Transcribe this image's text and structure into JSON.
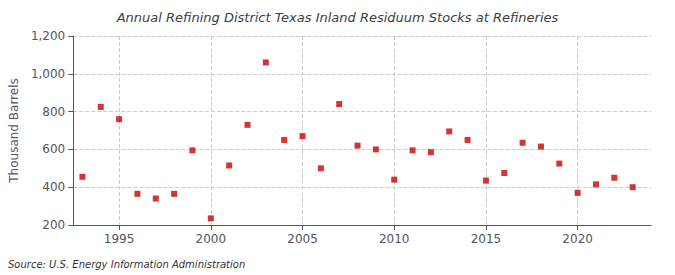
{
  "chart_data": {
    "type": "scatter",
    "title": "Annual Refining District Texas Inland Residuum Stocks at Refineries",
    "ylabel": "Thousand Barrels",
    "source": "Source: U.S. Energy Information Administration",
    "x": [
      1993,
      1994,
      1995,
      1996,
      1997,
      1998,
      1999,
      2000,
      2001,
      2002,
      2003,
      2004,
      2005,
      2006,
      2007,
      2008,
      2009,
      2010,
      2011,
      2012,
      2013,
      2014,
      2015,
      2016,
      2017,
      2018,
      2019,
      2020,
      2021,
      2022,
      2023
    ],
    "values": [
      455,
      825,
      760,
      365,
      340,
      365,
      595,
      235,
      515,
      730,
      1060,
      650,
      670,
      500,
      840,
      620,
      600,
      440,
      595,
      585,
      695,
      650,
      435,
      475,
      635,
      615,
      525,
      370,
      415,
      450,
      400
    ],
    "color": "#cc0000",
    "marker": "square",
    "xlim": [
      1992.5,
      2024
    ],
    "xticks": [
      1995,
      2000,
      2005,
      2010,
      2015,
      2020
    ],
    "ylim": [
      200,
      1200
    ],
    "yticks": [
      200,
      400,
      600,
      800,
      {
        "value": 1000,
        "label": "1,000"
      },
      {
        "value": 1200,
        "label": "1,200"
      }
    ],
    "grid": true
  }
}
